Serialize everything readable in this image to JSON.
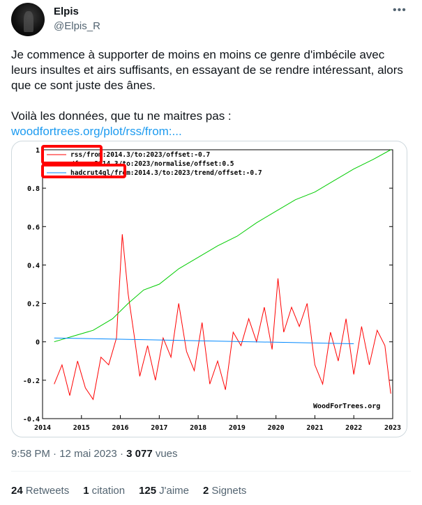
{
  "author": {
    "name": "Elpis",
    "handle": "@Elpis_R"
  },
  "menu_icon": "more-horizontal-icon",
  "tweet": {
    "paragraph1": "Je commence à supporter de moins en moins ce genre d'imbécile avec leurs insultes et airs suffisants, en essayant de se rendre intéressant, alors que ce sont juste des ânes.",
    "paragraph2": "Voilà les données, que tu ne maitres pas :",
    "link": "woodfortrees.org/plot/rss/from:..."
  },
  "meta": {
    "time": "9:58 PM",
    "date": "12 mai 2023",
    "views_count": "3 077",
    "views_label": "vues"
  },
  "stats": {
    "retweets": {
      "count": "24",
      "label": "Retweets"
    },
    "quotes": {
      "count": "1",
      "label": "citation"
    },
    "likes": {
      "count": "125",
      "label": "J'aime"
    },
    "bookmarks": {
      "count": "2",
      "label": "Signets"
    }
  },
  "chart_data": {
    "type": "line",
    "xlim": [
      2014,
      2023
    ],
    "ylim": [
      -0.4,
      1
    ],
    "x_ticks": [
      "2014",
      "2015",
      "2016",
      "2017",
      "2018",
      "2019",
      "2020",
      "2021",
      "2022",
      "2023"
    ],
    "y_ticks": [
      "1",
      "0.8",
      "0.6",
      "0.4",
      "0.2",
      "0",
      "-0.2",
      "-0.4"
    ],
    "legend": [
      "rss/from:2014.3/to:2023/offset:-0.7",
      "/from:2014.3/to:2023/normalise/offset:0.5",
      "hadcrut4gl/from:2014.3/to:2023/trend/offset:-0.7"
    ],
    "watermark": "WoodForTrees.org",
    "series": [
      {
        "color": "#ff0000",
        "x": [
          2014.3,
          2014.5,
          2014.7,
          2014.9,
          2015.1,
          2015.3,
          2015.5,
          2015.7,
          2015.9,
          2016.05,
          2016.2,
          2016.35,
          2016.5,
          2016.7,
          2016.9,
          2017.1,
          2017.3,
          2017.5,
          2017.7,
          2017.9,
          2018.1,
          2018.3,
          2018.5,
          2018.7,
          2018.9,
          2019.1,
          2019.3,
          2019.5,
          2019.7,
          2019.9,
          2020.05,
          2020.2,
          2020.4,
          2020.6,
          2020.8,
          2021.0,
          2021.2,
          2021.4,
          2021.6,
          2021.8,
          2022.0,
          2022.2,
          2022.4,
          2022.6,
          2022.8,
          2022.95
        ],
        "y": [
          -0.22,
          -0.12,
          -0.28,
          -0.1,
          -0.24,
          -0.3,
          -0.08,
          -0.12,
          0.02,
          0.56,
          0.25,
          0.04,
          -0.18,
          -0.02,
          -0.2,
          0.02,
          -0.08,
          0.2,
          -0.05,
          -0.15,
          0.1,
          -0.22,
          -0.1,
          -0.25,
          0.05,
          -0.02,
          0.12,
          0.0,
          0.18,
          -0.04,
          0.33,
          0.05,
          0.18,
          0.08,
          0.2,
          -0.12,
          -0.22,
          0.05,
          -0.1,
          0.12,
          -0.17,
          0.08,
          -0.12,
          0.06,
          -0.02,
          -0.27
        ]
      },
      {
        "color": "#00cc00",
        "x": [
          2014.3,
          2014.8,
          2015.3,
          2015.8,
          2016.2,
          2016.6,
          2017.0,
          2017.5,
          2018.0,
          2018.5,
          2019.0,
          2019.5,
          2020.0,
          2020.5,
          2021.0,
          2021.5,
          2022.0,
          2022.5,
          2022.95
        ],
        "y": [
          0.0,
          0.03,
          0.06,
          0.12,
          0.2,
          0.27,
          0.3,
          0.38,
          0.44,
          0.5,
          0.55,
          0.62,
          0.68,
          0.74,
          0.78,
          0.84,
          0.9,
          0.95,
          1.0
        ]
      },
      {
        "color": "#0088ff",
        "x": [
          2014.3,
          2022.0
        ],
        "y": [
          0.02,
          -0.01
        ]
      }
    ]
  }
}
